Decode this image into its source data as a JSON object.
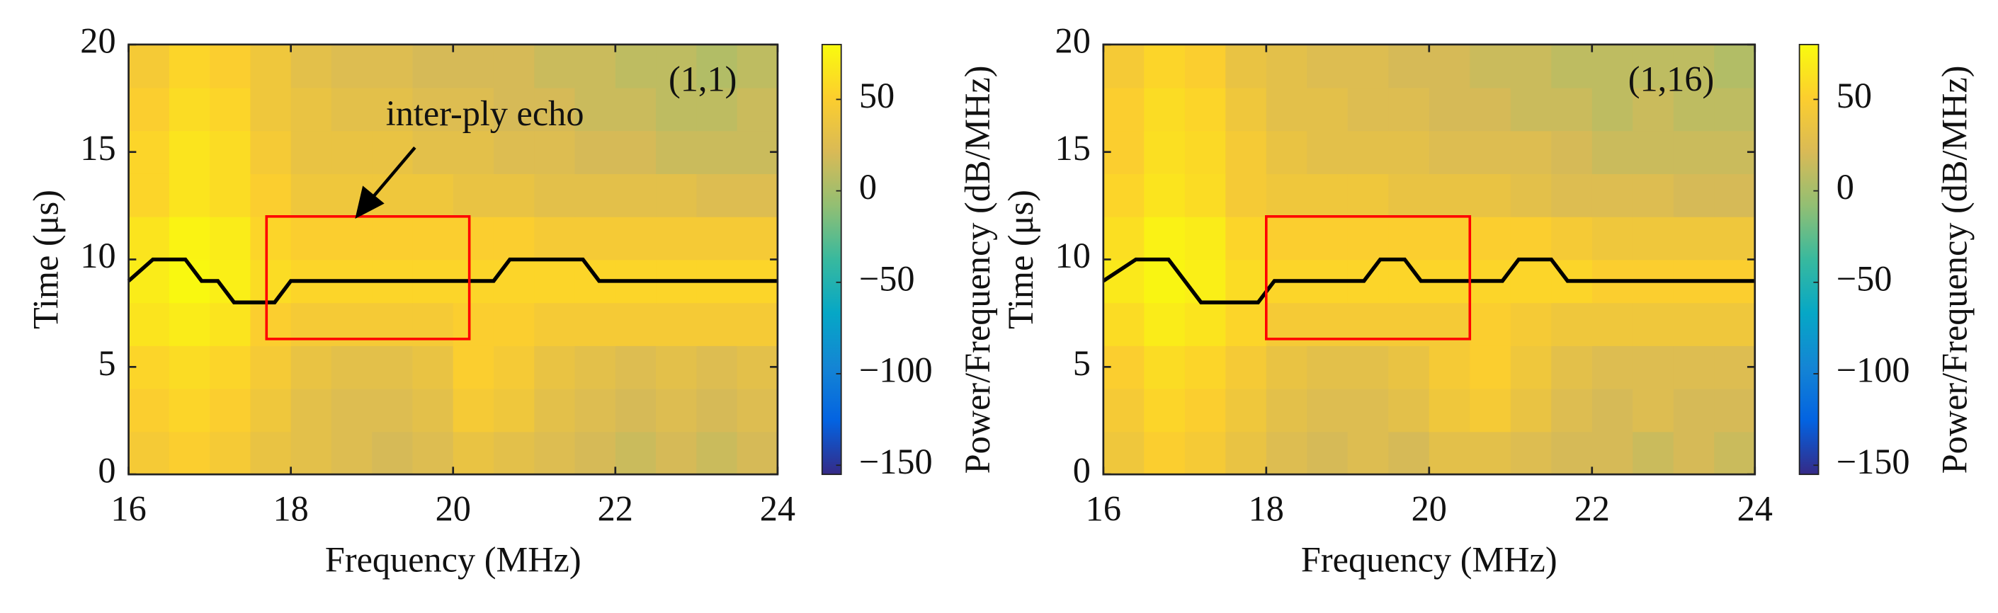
{
  "chart_data": [
    {
      "type": "heatmap",
      "colormap": "parula",
      "xlabel": "Frequency (MHz)",
      "ylabel": "Time (μs)",
      "colorbar_label": "Power/Frequency (dB/MHz)",
      "panel_label": "(1,1)",
      "annotation": "inter-ply echo",
      "x": [
        16.25,
        16.75,
        17.25,
        17.75,
        18.25,
        18.75,
        19.25,
        19.75,
        20.25,
        20.75,
        21.25,
        21.75,
        22.25,
        22.75,
        23.25,
        23.75
      ],
      "y": [
        1,
        3,
        5,
        7,
        9,
        11,
        13,
        15,
        17,
        19
      ],
      "z": [
        [
          45,
          50,
          45,
          35,
          30,
          25,
          20,
          25,
          35,
          30,
          25,
          20,
          15,
          20,
          15,
          20
        ],
        [
          50,
          55,
          50,
          40,
          30,
          25,
          25,
          30,
          45,
          40,
          30,
          25,
          20,
          25,
          20,
          25
        ],
        [
          55,
          60,
          55,
          45,
          35,
          30,
          30,
          35,
          50,
          45,
          35,
          30,
          25,
          30,
          25,
          30
        ],
        [
          65,
          70,
          65,
          50,
          45,
          45,
          45,
          45,
          50,
          50,
          45,
          45,
          45,
          45,
          45,
          45
        ],
        [
          70,
          78,
          72,
          60,
          55,
          55,
          55,
          55,
          55,
          55,
          55,
          55,
          55,
          55,
          55,
          55
        ],
        [
          65,
          75,
          70,
          55,
          50,
          50,
          50,
          50,
          50,
          50,
          45,
          45,
          45,
          45,
          45,
          45
        ],
        [
          55,
          65,
          60,
          50,
          40,
          40,
          40,
          40,
          35,
          35,
          30,
          30,
          30,
          30,
          25,
          25
        ],
        [
          55,
          65,
          60,
          45,
          35,
          35,
          35,
          30,
          30,
          25,
          25,
          20,
          20,
          15,
          15,
          15
        ],
        [
          50,
          60,
          55,
          40,
          35,
          30,
          30,
          25,
          25,
          20,
          20,
          15,
          15,
          10,
          10,
          15
        ],
        [
          45,
          55,
          50,
          40,
          30,
          25,
          25,
          20,
          20,
          20,
          15,
          15,
          10,
          10,
          5,
          10
        ]
      ],
      "ridge": {
        "x": [
          16,
          16.3,
          16.7,
          16.9,
          17.1,
          17.3,
          17.8,
          18,
          20.5,
          20.7,
          21.6,
          21.8,
          24
        ],
        "y": [
          9,
          10,
          10,
          9,
          9,
          8,
          8,
          9,
          9,
          10,
          10,
          9,
          9
        ]
      },
      "box": {
        "x": [
          17.7,
          20.2
        ],
        "y": [
          6.3,
          12
        ]
      },
      "xlim": [
        16,
        24
      ],
      "ylim": [
        0,
        20
      ],
      "xticks": [
        16,
        18,
        20,
        22,
        24
      ],
      "yticks": [
        0,
        5,
        10,
        15,
        20
      ],
      "clim": [
        -155,
        80
      ],
      "cticks": [
        {
          "value": -150,
          "label": "−150"
        },
        {
          "value": -100,
          "label": "−100"
        },
        {
          "value": -50,
          "label": "−50"
        },
        0,
        50
      ]
    },
    {
      "type": "heatmap",
      "colormap": "parula",
      "xlabel": "Frequency (MHz)",
      "ylabel": "Time (μs)",
      "colorbar_label": "Power/Frequency (dB/MHz)",
      "panel_label": "(1,16)",
      "x": [
        16.25,
        16.75,
        17.25,
        17.75,
        18.25,
        18.75,
        19.25,
        19.75,
        20.25,
        20.75,
        21.25,
        21.75,
        22.25,
        22.75,
        23.25,
        23.75
      ],
      "y": [
        1,
        3,
        5,
        7,
        9,
        11,
        13,
        15,
        17,
        19
      ],
      "z": [
        [
          40,
          50,
          45,
          35,
          25,
          20,
          25,
          20,
          30,
          30,
          25,
          20,
          20,
          15,
          20,
          15
        ],
        [
          45,
          55,
          50,
          40,
          30,
          25,
          25,
          30,
          40,
          45,
          35,
          25,
          20,
          25,
          20,
          20
        ],
        [
          50,
          60,
          55,
          45,
          35,
          30,
          30,
          35,
          45,
          50,
          40,
          30,
          25,
          25,
          25,
          25
        ],
        [
          60,
          70,
          65,
          55,
          45,
          45,
          45,
          45,
          45,
          50,
          45,
          40,
          40,
          40,
          40,
          40
        ],
        [
          68,
          76,
          72,
          60,
          55,
          55,
          55,
          55,
          55,
          55,
          55,
          55,
          50,
          50,
          50,
          50
        ],
        [
          62,
          74,
          70,
          55,
          50,
          50,
          50,
          50,
          50,
          50,
          50,
          45,
          40,
          40,
          40,
          40
        ],
        [
          55,
          65,
          60,
          45,
          40,
          40,
          40,
          35,
          35,
          35,
          30,
          25,
          25,
          25,
          20,
          20
        ],
        [
          50,
          62,
          58,
          45,
          35,
          30,
          30,
          30,
          25,
          25,
          25,
          20,
          15,
          15,
          15,
          15
        ],
        [
          50,
          60,
          55,
          40,
          30,
          30,
          25,
          25,
          20,
          20,
          15,
          15,
          10,
          15,
          10,
          10
        ],
        [
          45,
          55,
          50,
          35,
          30,
          25,
          25,
          20,
          20,
          15,
          15,
          10,
          10,
          10,
          10,
          5
        ]
      ],
      "ridge": {
        "x": [
          16,
          16.4,
          16.8,
          17.2,
          17.9,
          18.1,
          19.2,
          19.4,
          19.7,
          19.9,
          20.9,
          21.1,
          21.5,
          21.7,
          24
        ],
        "y": [
          9,
          10,
          10,
          8,
          8,
          9,
          9,
          10,
          10,
          9,
          9,
          10,
          10,
          9,
          9
        ]
      },
      "box": {
        "x": [
          18,
          20.5
        ],
        "y": [
          6.3,
          12
        ]
      },
      "xlim": [
        16,
        24
      ],
      "ylim": [
        0,
        20
      ],
      "xticks": [
        16,
        18,
        20,
        22,
        24
      ],
      "yticks": [
        0,
        5,
        10,
        15,
        20
      ],
      "clim": [
        -155,
        80
      ],
      "cticks": [
        {
          "value": -150,
          "label": "−150"
        },
        {
          "value": -100,
          "label": "−100"
        },
        {
          "value": -50,
          "label": "−50"
        },
        0,
        50
      ]
    }
  ]
}
